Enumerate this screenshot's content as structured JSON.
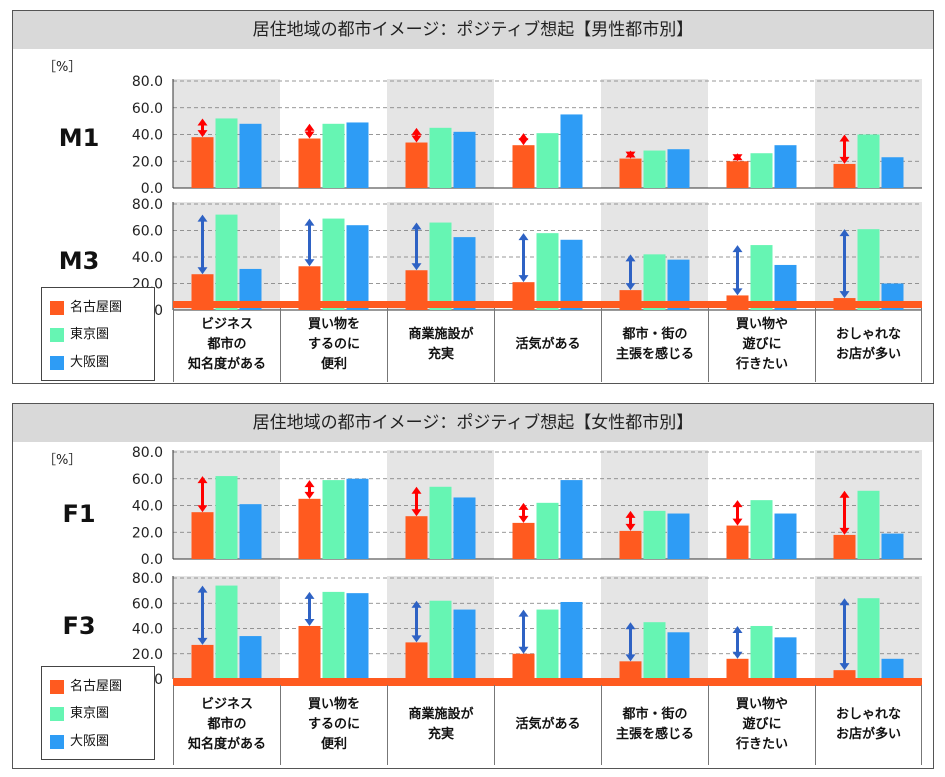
{
  "colors": {
    "nagoya": "#ff5a1f",
    "tokyo": "#66f5b3",
    "osaka": "#2e9cf5",
    "arrow_red": "#ff0000",
    "arrow_blue": "#2e62c4",
    "band": "#e5e5e5"
  },
  "legend": [
    "名古屋圏",
    "東京圏",
    "大阪圏"
  ],
  "unit_label": "［%］",
  "categories": [
    "ビジネス\n都市の\n知名度がある",
    "買い物を\nするのに\n便利",
    "商業施設が\n充実",
    "活気がある",
    "都市・街の\n主張を感じる",
    "買い物や\n遊びに\n行きたい",
    "おしゃれな\nお店が多い"
  ],
  "chart_data": [
    {
      "type": "bar",
      "title": "居住地域の都市イメージ：ポジティブ想起【男性都市別】",
      "ylim": [
        0,
        80
      ],
      "yticks": [
        "80.0",
        "60.0",
        "40.0",
        "20.0",
        "0.0"
      ],
      "rows": [
        {
          "label": "M1",
          "series": [
            {
              "name": "名古屋圏",
              "values": [
                38,
                37,
                34,
                32,
                22,
                20,
                18
              ]
            },
            {
              "name": "東京圏",
              "values": [
                52,
                48,
                45,
                41,
                28,
                26,
                40
              ]
            },
            {
              "name": "大阪圏",
              "values": [
                48,
                49,
                42,
                55,
                29,
                32,
                23
              ]
            }
          ]
        },
        {
          "label": "M3",
          "series": [
            {
              "name": "名古屋圏",
              "values": [
                27,
                33,
                30,
                21,
                15,
                11,
                9
              ]
            },
            {
              "name": "東京圏",
              "values": [
                72,
                69,
                66,
                58,
                42,
                49,
                61
              ]
            },
            {
              "name": "大阪圏",
              "values": [
                31,
                64,
                55,
                53,
                38,
                34,
                20
              ]
            }
          ]
        }
      ]
    },
    {
      "type": "bar",
      "title": "居住地域の都市イメージ：ポジティブ想起【女性都市別】",
      "ylim": [
        0,
        80
      ],
      "yticks": [
        "80.0",
        "60.0",
        "40.0",
        "20.0",
        "0.0"
      ],
      "rows": [
        {
          "label": "F1",
          "series": [
            {
              "name": "名古屋圏",
              "values": [
                35,
                45,
                32,
                27,
                21,
                25,
                18
              ]
            },
            {
              "name": "東京圏",
              "values": [
                62,
                59,
                54,
                42,
                36,
                44,
                51
              ]
            },
            {
              "name": "大阪圏",
              "values": [
                41,
                60,
                46,
                59,
                34,
                34,
                19
              ]
            }
          ]
        },
        {
          "label": "F3",
          "series": [
            {
              "name": "名古屋圏",
              "values": [
                27,
                42,
                29,
                20,
                14,
                16,
                7
              ]
            },
            {
              "name": "東京圏",
              "values": [
                74,
                69,
                62,
                55,
                45,
                42,
                64
              ]
            },
            {
              "name": "大阪圏",
              "values": [
                34,
                68,
                55,
                61,
                37,
                33,
                16
              ]
            }
          ]
        }
      ]
    }
  ]
}
